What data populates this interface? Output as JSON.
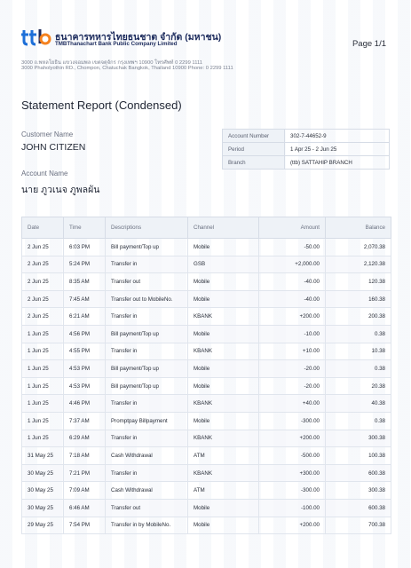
{
  "header": {
    "logo_icon": "ttb-logo-icon",
    "bank_name_th": "ธนาคารทหารไทยธนชาต จำกัด (มหาชน)",
    "bank_name_en": "TMBThanachart Bank Public Company Limited",
    "page_label": "Page 1/1",
    "address_th": "3000 ถ.พหลโยธิน แขวงจอมพล เขตจตุจักร กรุงเทพฯ 10900 โทรศัพท์ 0 2299 1111",
    "address_en": "3000 Phaholyothin RD., Chompon, Chatuchak Bangkok, Thailand 10900 Phone: 0 2299 1111"
  },
  "report": {
    "title": "Statement Report (Condensed)",
    "customer_name_label": "Customer Name",
    "customer_name": "JOHN CITIZEN",
    "account_name_label": "Account Name",
    "account_name": "นาย ภูวเนจ ภูพลผัน"
  },
  "account_info": [
    {
      "key": "Account Number",
      "value": "302-7-44652-9"
    },
    {
      "key": "Period",
      "value": "1 Apr 25 - 2 Jun 25"
    },
    {
      "key": "Branch",
      "value": "(ttb) SATTAHIP BRANCH"
    }
  ],
  "table": {
    "columns": [
      "Date",
      "Time",
      "Descriptions",
      "Channel",
      "Amount",
      "Balance"
    ],
    "rows": [
      [
        "2 Jun 25",
        "6:03 PM",
        "Bill payment/Top up",
        "Mobile",
        "-50.00",
        "2,070.38"
      ],
      [
        "2 Jun 25",
        "5:24 PM",
        "Transfer in",
        "GSB",
        "+2,000.00",
        "2,120.38"
      ],
      [
        "2 Jun 25",
        "8:35 AM",
        "Transfer out",
        "Mobile",
        "-40.00",
        "120.38"
      ],
      [
        "2 Jun 25",
        "7:45 AM",
        "Transfer out to MobileNo.",
        "Mobile",
        "-40.00",
        "160.38"
      ],
      [
        "2 Jun 25",
        "6:21 AM",
        "Transfer in",
        "KBANK",
        "+200.00",
        "200.38"
      ],
      [
        "1 Jun 25",
        "4:56 PM",
        "Bill payment/Top up",
        "Mobile",
        "-10.00",
        "0.38"
      ],
      [
        "1 Jun 25",
        "4:55 PM",
        "Transfer in",
        "KBANK",
        "+10.00",
        "10.38"
      ],
      [
        "1 Jun 25",
        "4:53 PM",
        "Bill payment/Top up",
        "Mobile",
        "-20.00",
        "0.38"
      ],
      [
        "1 Jun 25",
        "4:53 PM",
        "Bill payment/Top up",
        "Mobile",
        "-20.00",
        "20.38"
      ],
      [
        "1 Jun 25",
        "4:46 PM",
        "Transfer in",
        "KBANK",
        "+40.00",
        "40.38"
      ],
      [
        "1 Jun 25",
        "7:37 AM",
        "Promptpay Billpayment",
        "Mobile",
        "-300.00",
        "0.38"
      ],
      [
        "1 Jun 25",
        "6:29 AM",
        "Transfer in",
        "KBANK",
        "+200.00",
        "300.38"
      ],
      [
        "31 May 25",
        "7:18 AM",
        "Cash Withdrawal",
        "ATM",
        "-500.00",
        "100.38"
      ],
      [
        "30 May 25",
        "7:21 PM",
        "Transfer in",
        "KBANK",
        "+300.00",
        "600.38"
      ],
      [
        "30 May 25",
        "7:09 AM",
        "Cash Withdrawal",
        "ATM",
        "-300.00",
        "300.38"
      ],
      [
        "30 May 25",
        "6:46 AM",
        "Transfer out",
        "Mobile",
        "-100.00",
        "600.38"
      ],
      [
        "29 May 25",
        "7:54 PM",
        "Transfer in by MobileNo.",
        "Mobile",
        "+200.00",
        "700.38"
      ]
    ]
  },
  "colors": {
    "brand_navy": "#1b2a5c",
    "brand_blue": "#1d6fd8",
    "brand_orange": "#f5821f"
  }
}
